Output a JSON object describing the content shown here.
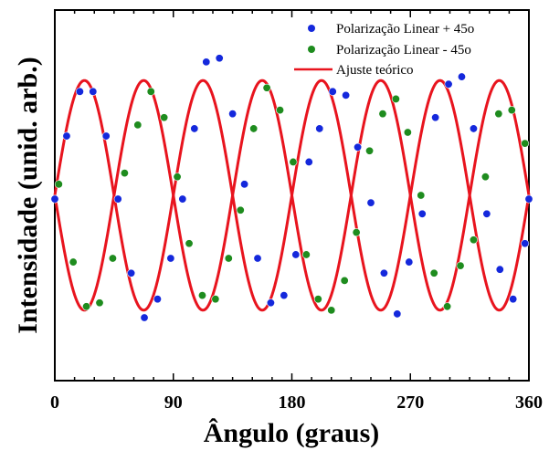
{
  "chart_data": {
    "type": "scatter",
    "xlabel": "Ângulo (graus)",
    "ylabel": "Intensidade (unid. arb.)",
    "xlim": [
      0,
      360
    ],
    "ylim": [
      0,
      1
    ],
    "xticks": [
      0,
      90,
      180,
      270,
      360
    ],
    "xtick_labels": [
      "0",
      "90",
      "180",
      "270",
      "360"
    ],
    "legend_position": "top-right",
    "colors": {
      "blue": "#1428dc",
      "green": "#1e8c1e",
      "fit": "#e8141e"
    },
    "series": [
      {
        "name": "Polarização Linear + 45o",
        "marker": "circle",
        "color": "#1428dc",
        "points": [
          [
            0,
            0.49
          ],
          [
            9,
            0.66
          ],
          [
            19,
            0.78
          ],
          [
            29,
            0.78
          ],
          [
            39,
            0.66
          ],
          [
            48,
            0.49
          ],
          [
            58,
            0.29
          ],
          [
            68,
            0.17
          ],
          [
            78,
            0.22
          ],
          [
            88,
            0.33
          ],
          [
            97,
            0.49
          ],
          [
            106,
            0.68
          ],
          [
            115,
            0.86
          ],
          [
            125,
            0.87
          ],
          [
            135,
            0.72
          ],
          [
            144,
            0.53
          ],
          [
            154,
            0.33
          ],
          [
            164,
            0.21
          ],
          [
            174,
            0.23
          ],
          [
            183,
            0.34
          ],
          [
            193,
            0.59
          ],
          [
            201,
            0.68
          ],
          [
            211,
            0.78
          ],
          [
            221,
            0.77
          ],
          [
            230,
            0.63
          ],
          [
            240,
            0.48
          ],
          [
            250,
            0.29
          ],
          [
            260,
            0.18
          ],
          [
            269,
            0.32
          ],
          [
            279,
            0.45
          ],
          [
            289,
            0.71
          ],
          [
            299,
            0.8
          ],
          [
            309,
            0.82
          ],
          [
            318,
            0.68
          ],
          [
            328,
            0.45
          ],
          [
            338,
            0.3
          ],
          [
            348,
            0.22
          ],
          [
            357,
            0.37
          ],
          [
            360,
            0.49
          ]
        ]
      },
      {
        "name": "Polarização Linear - 45o",
        "marker": "circle",
        "color": "#1e8c1e",
        "points": [
          [
            3,
            0.53
          ],
          [
            14,
            0.32
          ],
          [
            24,
            0.2
          ],
          [
            34,
            0.21
          ],
          [
            44,
            0.33
          ],
          [
            53,
            0.56
          ],
          [
            63,
            0.69
          ],
          [
            73,
            0.78
          ],
          [
            83,
            0.71
          ],
          [
            93,
            0.55
          ],
          [
            102,
            0.37
          ],
          [
            112,
            0.23
          ],
          [
            122,
            0.22
          ],
          [
            132,
            0.33
          ],
          [
            141,
            0.46
          ],
          [
            151,
            0.68
          ],
          [
            161,
            0.79
          ],
          [
            171,
            0.73
          ],
          [
            181,
            0.59
          ],
          [
            191,
            0.34
          ],
          [
            200,
            0.22
          ],
          [
            210,
            0.19
          ],
          [
            220,
            0.27
          ],
          [
            229,
            0.4
          ],
          [
            239,
            0.62
          ],
          [
            249,
            0.72
          ],
          [
            259,
            0.76
          ],
          [
            268,
            0.67
          ],
          [
            278,
            0.5
          ],
          [
            288,
            0.29
          ],
          [
            298,
            0.2
          ],
          [
            308,
            0.31
          ],
          [
            318,
            0.38
          ],
          [
            327,
            0.55
          ],
          [
            337,
            0.72
          ],
          [
            347,
            0.73
          ],
          [
            357,
            0.64
          ]
        ]
      },
      {
        "name": "Ajuste teórico",
        "type": "line",
        "color": "#e8141e",
        "function": "two sinusoids with period 90, amplitude 0.31, centered at 0.5, in antiphase",
        "center": 0.5,
        "amplitude": 0.31,
        "period": 90
      }
    ]
  }
}
